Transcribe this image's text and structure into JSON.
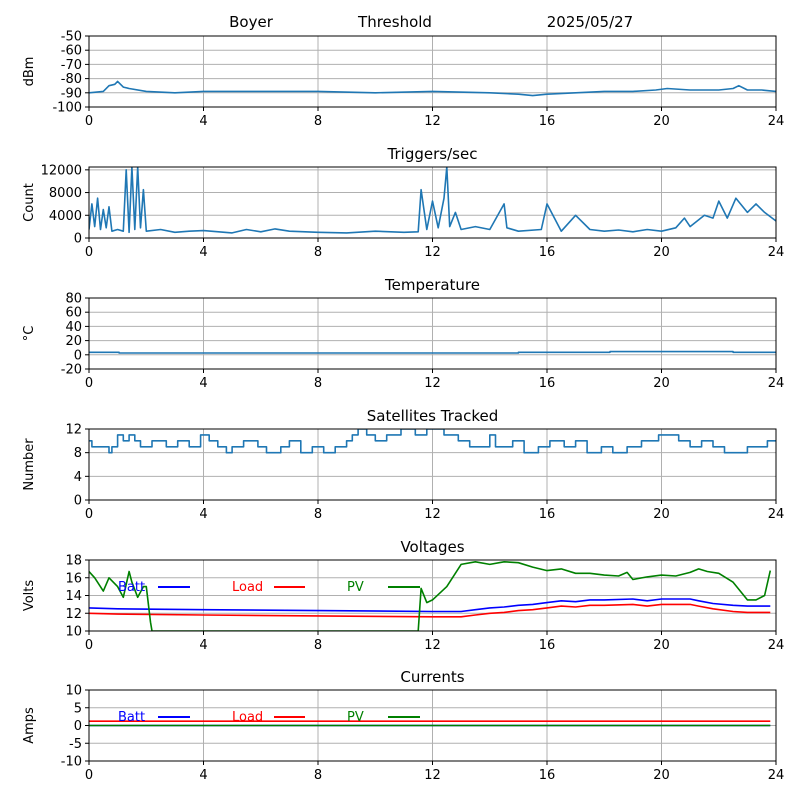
{
  "header": {
    "station": "Boyer",
    "mode": "Threshold",
    "date": "2025/05/27"
  },
  "colors": {
    "series": "#1f77b4",
    "batt": "#0000ff",
    "load": "#ff0000",
    "pv": "#008000",
    "grid": "#b0b0b0",
    "axis": "#000000"
  },
  "chart_data": [
    {
      "id": "threshold",
      "type": "line",
      "title": "",
      "xlabel": "",
      "ylabel": "dBm",
      "xlim": [
        0,
        24
      ],
      "xticks": [
        0,
        4,
        8,
        12,
        16,
        20,
        24
      ],
      "ylim": [
        -100,
        -50
      ],
      "yticks": [
        -100,
        -90,
        -80,
        -70,
        -60,
        -50
      ],
      "grid": true,
      "series": [
        {
          "name": "",
          "color": "series",
          "x": [
            0,
            0.5,
            0.7,
            0.9,
            1.0,
            1.2,
            1.4,
            2,
            3,
            4,
            6,
            8,
            10,
            12,
            14,
            15,
            15.5,
            16,
            17,
            18,
            19,
            19.8,
            20.2,
            21,
            22,
            22.5,
            22.7,
            23,
            23.5,
            24
          ],
          "y": [
            -90,
            -89,
            -85,
            -84,
            -82,
            -86,
            -87,
            -89,
            -90,
            -89,
            -89,
            -89,
            -90,
            -89,
            -90,
            -91,
            -92,
            -91,
            -90,
            -89,
            -89,
            -88,
            -87,
            -88,
            -88,
            -87,
            -85,
            -88,
            -88,
            -89
          ]
        }
      ]
    },
    {
      "id": "triggers",
      "type": "line",
      "title": "Triggers/sec",
      "xlabel": "",
      "ylabel": "Count",
      "xlim": [
        0,
        24
      ],
      "xticks": [
        0,
        4,
        8,
        12,
        16,
        20,
        24
      ],
      "ylim": [
        0,
        12500
      ],
      "yticks": [
        0,
        4000,
        8000,
        12000
      ],
      "yticklabels": [
        "0",
        "4000",
        "8000",
        "12000"
      ],
      "grid": true,
      "series": [
        {
          "name": "",
          "color": "series",
          "x": [
            0,
            0.1,
            0.2,
            0.3,
            0.4,
            0.5,
            0.6,
            0.7,
            0.8,
            1.0,
            1.2,
            1.3,
            1.4,
            1.5,
            1.6,
            1.7,
            1.8,
            1.9,
            2.0,
            2.5,
            3.0,
            3.5,
            4.0,
            5.0,
            5.5,
            6.0,
            6.5,
            7.0,
            8.0,
            9.0,
            10.0,
            11.0,
            11.5,
            11.6,
            11.8,
            12.0,
            12.2,
            12.4,
            12.5,
            12.6,
            12.8,
            13.0,
            13.5,
            14.0,
            14.5,
            14.6,
            15.0,
            15.8,
            16.0,
            16.5,
            17.0,
            17.5,
            18.0,
            18.5,
            19.0,
            19.5,
            20.0,
            20.5,
            20.8,
            21.0,
            21.5,
            21.8,
            22.0,
            22.3,
            22.6,
            23.0,
            23.3,
            23.6,
            24.0
          ],
          "y": [
            1500,
            6000,
            2000,
            7000,
            1500,
            5000,
            1800,
            5500,
            1200,
            1500,
            1200,
            12000,
            1000,
            12500,
            1500,
            12500,
            1800,
            8500,
            1200,
            1500,
            1000,
            1200,
            1300,
            900,
            1500,
            1100,
            1600,
            1200,
            1000,
            900,
            1200,
            1000,
            1100,
            8500,
            1500,
            6500,
            1800,
            7000,
            12500,
            2000,
            4500,
            1500,
            2000,
            1500,
            6000,
            1800,
            1200,
            1500,
            6000,
            1200,
            4000,
            1500,
            1200,
            1400,
            1100,
            1500,
            1200,
            1800,
            3500,
            2000,
            4000,
            3500,
            6500,
            3500,
            7000,
            4500,
            6000,
            4500,
            3000
          ]
        }
      ]
    },
    {
      "id": "temperature",
      "type": "line",
      "title": "Temperature",
      "xlabel": "",
      "ylabel": "°C",
      "xlim": [
        0,
        24
      ],
      "xticks": [
        0,
        4,
        8,
        12,
        16,
        20,
        24
      ],
      "ylim": [
        -20,
        80
      ],
      "yticks": [
        -20,
        0,
        20,
        40,
        60,
        80
      ],
      "grid": true,
      "series": [
        {
          "name": "",
          "color": "series",
          "x": [
            0,
            1.05,
            1.05,
            15.0,
            15.0,
            18.2,
            18.2,
            22.5,
            22.5,
            24
          ],
          "y": [
            3.5,
            3.5,
            2.5,
            2.5,
            3.5,
            3.5,
            4.5,
            4.5,
            3.5,
            3.5
          ]
        }
      ]
    },
    {
      "id": "satellites",
      "type": "line",
      "title": "Satellites Tracked",
      "xlabel": "",
      "ylabel": "Number",
      "xlim": [
        0,
        24
      ],
      "xticks": [
        0,
        4,
        8,
        12,
        16,
        20,
        24
      ],
      "ylim": [
        0,
        12
      ],
      "yticks": [
        0,
        4,
        8,
        12
      ],
      "grid": true,
      "series": [
        {
          "name": "",
          "color": "series",
          "x": [
            0,
            0.1,
            0.1,
            0.7,
            0.7,
            0.8,
            0.8,
            1.0,
            1.0,
            1.2,
            1.2,
            1.4,
            1.4,
            1.6,
            1.6,
            1.8,
            1.8,
            2.2,
            2.2,
            2.7,
            2.7,
            3.1,
            3.1,
            3.5,
            3.5,
            3.9,
            3.9,
            4.2,
            4.2,
            4.5,
            4.5,
            4.8,
            4.8,
            5.0,
            5.0,
            5.4,
            5.4,
            5.9,
            5.9,
            6.2,
            6.2,
            6.7,
            6.7,
            7.0,
            7.0,
            7.4,
            7.4,
            7.8,
            7.8,
            8.2,
            8.2,
            8.6,
            8.6,
            9.0,
            9.0,
            9.2,
            9.2,
            9.4,
            9.4,
            9.7,
            9.7,
            10.0,
            10.0,
            10.4,
            10.4,
            10.9,
            10.9,
            11.4,
            11.4,
            11.8,
            11.8,
            12.4,
            12.4,
            12.9,
            12.9,
            13.3,
            13.3,
            14.0,
            14.0,
            14.2,
            14.2,
            14.8,
            14.8,
            15.2,
            15.2,
            15.7,
            15.7,
            16.1,
            16.1,
            16.6,
            16.6,
            17.0,
            17.0,
            17.4,
            17.4,
            17.9,
            17.9,
            18.3,
            18.3,
            18.8,
            18.8,
            19.3,
            19.3,
            19.9,
            19.9,
            20.6,
            20.6,
            21.0,
            21.0,
            21.4,
            21.4,
            21.8,
            21.8,
            22.2,
            22.2,
            23.0,
            23.0,
            23.7,
            23.7,
            24
          ],
          "y": [
            10,
            10,
            9,
            9,
            8,
            8,
            9,
            9,
            11,
            11,
            10,
            10,
            11,
            11,
            10,
            10,
            9,
            9,
            10,
            10,
            9,
            9,
            10,
            10,
            9,
            9,
            11,
            11,
            10,
            10,
            9,
            9,
            8,
            8,
            9,
            9,
            10,
            10,
            9,
            9,
            8,
            8,
            9,
            9,
            10,
            10,
            8,
            8,
            9,
            9,
            8,
            8,
            9,
            9,
            10,
            10,
            11,
            11,
            12,
            12,
            11,
            11,
            10,
            10,
            11,
            11,
            12,
            12,
            11,
            11,
            12,
            12,
            11,
            11,
            10,
            10,
            9,
            9,
            11,
            11,
            9,
            9,
            10,
            10,
            8,
            8,
            9,
            9,
            10,
            10,
            9,
            9,
            10,
            10,
            8,
            8,
            9,
            9,
            8,
            8,
            9,
            9,
            10,
            10,
            11,
            11,
            10,
            10,
            9,
            9,
            10,
            10,
            9,
            9,
            8,
            8,
            9,
            9,
            10,
            10
          ]
        }
      ]
    },
    {
      "id": "voltages",
      "type": "line",
      "title": "Voltages",
      "xlabel": "",
      "ylabel": "Volts",
      "xlim": [
        0,
        24
      ],
      "xticks": [
        0,
        4,
        8,
        12,
        16,
        20,
        24
      ],
      "ylim": [
        10,
        18
      ],
      "yticks": [
        10,
        12,
        14,
        16,
        18
      ],
      "grid": true,
      "legend": [
        "Batt",
        "Load",
        "PV"
      ],
      "legend_placement": "upper-left",
      "series": [
        {
          "name": "Batt",
          "color": "batt",
          "x": [
            0,
            1,
            4,
            8,
            12,
            13,
            13.5,
            14,
            14.5,
            15,
            15.5,
            16,
            16.5,
            17,
            17.5,
            18,
            19,
            19.5,
            20,
            21,
            21.3,
            21.8,
            22.5,
            23,
            23.8
          ],
          "y": [
            12.6,
            12.5,
            12.4,
            12.3,
            12.2,
            12.2,
            12.4,
            12.6,
            12.7,
            12.9,
            13.0,
            13.2,
            13.4,
            13.3,
            13.5,
            13.5,
            13.6,
            13.4,
            13.6,
            13.6,
            13.4,
            13.1,
            12.9,
            12.8,
            12.8
          ]
        },
        {
          "name": "Load",
          "color": "load",
          "x": [
            0,
            1,
            4,
            8,
            12,
            13,
            13.5,
            14,
            14.5,
            15,
            15.5,
            16,
            16.5,
            17,
            17.5,
            18,
            19,
            19.5,
            20,
            21,
            21.3,
            21.8,
            22.5,
            23,
            23.8
          ],
          "y": [
            12.0,
            11.9,
            11.8,
            11.7,
            11.6,
            11.6,
            11.8,
            12.0,
            12.1,
            12.3,
            12.4,
            12.6,
            12.8,
            12.7,
            12.9,
            12.9,
            13.0,
            12.8,
            13.0,
            13.0,
            12.8,
            12.5,
            12.2,
            12.1,
            12.1
          ]
        },
        {
          "name": "PV",
          "color": "pv",
          "x": [
            0,
            0.2,
            0.5,
            0.7,
            1.0,
            1.2,
            1.4,
            1.5,
            1.7,
            1.9,
            2.0,
            2.15,
            2.2,
            11.5,
            11.6,
            11.8,
            12.0,
            12.5,
            13.0,
            13.5,
            14.0,
            14.5,
            15.0,
            15.5,
            16.0,
            16.5,
            17.0,
            17.5,
            18.0,
            18.5,
            18.8,
            19.0,
            19.5,
            20.0,
            20.5,
            21.0,
            21.3,
            21.6,
            22.0,
            22.5,
            23.0,
            23.3,
            23.6,
            23.8
          ],
          "y": [
            16.7,
            16.0,
            14.5,
            16.0,
            15.0,
            13.8,
            16.7,
            15.5,
            13.8,
            15.0,
            15.0,
            11.0,
            10.0,
            10.0,
            14.8,
            13.2,
            13.5,
            15.0,
            17.5,
            17.8,
            17.5,
            17.8,
            17.7,
            17.2,
            16.8,
            17.0,
            16.5,
            16.5,
            16.3,
            16.2,
            16.6,
            15.8,
            16.1,
            16.3,
            16.2,
            16.6,
            17.0,
            16.7,
            16.5,
            15.5,
            13.5,
            13.5,
            14.0,
            16.8
          ]
        }
      ]
    },
    {
      "id": "currents",
      "type": "line",
      "title": "Currents",
      "xlabel": "",
      "ylabel": "Amps",
      "xlim": [
        0,
        24
      ],
      "xticks": [
        0,
        4,
        8,
        12,
        16,
        20,
        24
      ],
      "ylim": [
        -10,
        10
      ],
      "yticks": [
        -10,
        -5,
        0,
        5,
        10
      ],
      "grid": true,
      "legend": [
        "Batt",
        "Load",
        "PV"
      ],
      "legend_placement": "upper-left",
      "series": [
        {
          "name": "Batt",
          "color": "batt",
          "x": [
            0,
            23.8
          ],
          "y": [
            0.0,
            0.0
          ]
        },
        {
          "name": "Load",
          "color": "load",
          "x": [
            0,
            23.8
          ],
          "y": [
            1.2,
            1.2
          ]
        },
        {
          "name": "PV",
          "color": "pv",
          "x": [
            0,
            23.8
          ],
          "y": [
            0.0,
            0.0
          ]
        }
      ]
    }
  ]
}
